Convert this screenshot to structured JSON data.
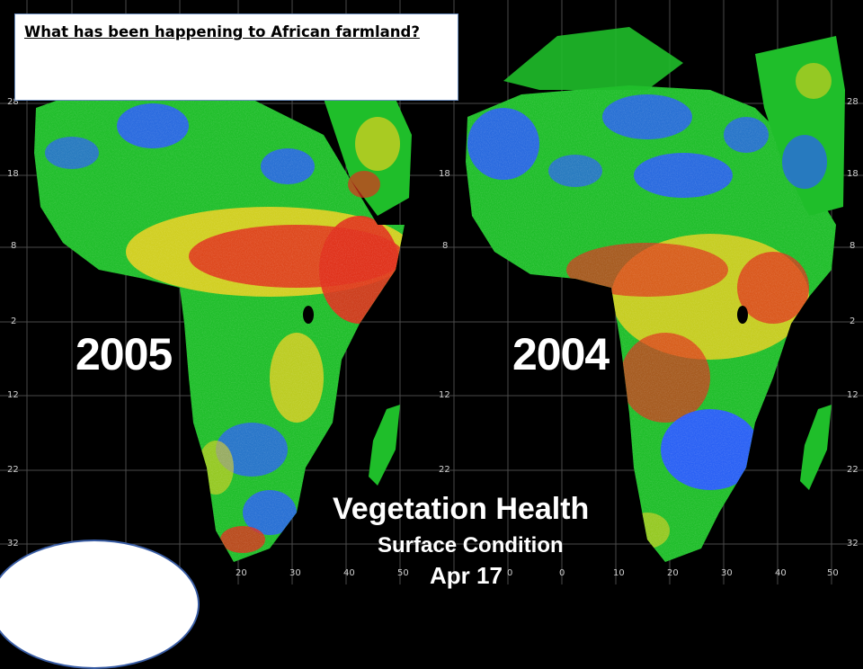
{
  "slide": {
    "question": "What has been happening to African farmland?",
    "oval_text": ""
  },
  "maps": {
    "left_year": "2005",
    "right_year": "2004",
    "legend_title": "Vegetation Health",
    "legend_subtitle": "Surface Condition",
    "legend_date": "Apr 17",
    "lat_ticks": [
      "28",
      "18",
      "8",
      "2",
      "12",
      "22",
      "32"
    ],
    "lon_ticks": [
      "0",
      "10",
      "20",
      "30",
      "40",
      "50"
    ],
    "colors": {
      "healthy": "#2b5cff",
      "good": "#1fbe2a",
      "moderate": "#e4d020",
      "stressed": "#e0301c",
      "background": "#000000"
    }
  }
}
